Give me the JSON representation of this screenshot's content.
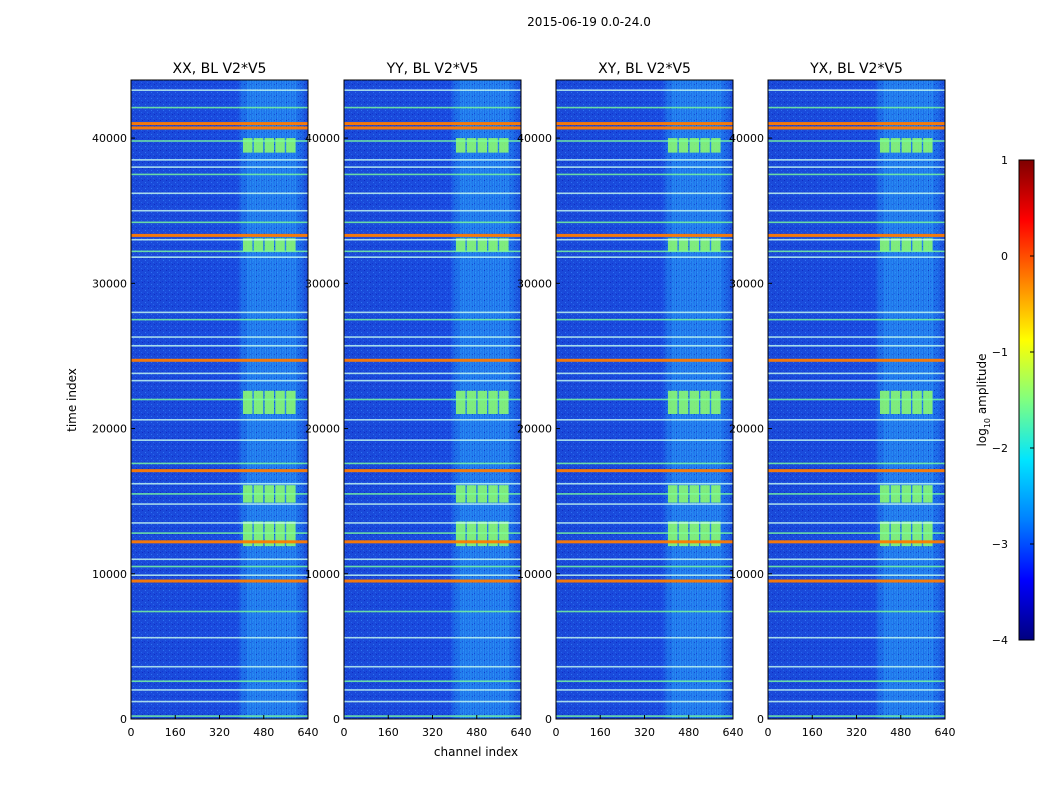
{
  "figure": {
    "suptitle": "2015-06-19 0.0-24.0",
    "xlabel": "channel index",
    "ylabel": "time index"
  },
  "colorbar": {
    "label_main": "log",
    "label_sub": "10",
    "label_tail": " amplitude",
    "range": [
      -4,
      1
    ],
    "ticks": [
      "1",
      "0",
      "−1",
      "−2",
      "−3",
      "−4"
    ],
    "colors": [
      "#7f0000",
      "#ff0000",
      "#ff8000",
      "#ffff00",
      "#80ff80",
      "#00e5ff",
      "#0080ff",
      "#0000ff",
      "#00007f"
    ]
  },
  "chart_data": {
    "type": "heatmap",
    "x_range": [
      0,
      640
    ],
    "y_range": [
      0,
      44000
    ],
    "x_ticks": [
      0,
      160,
      320,
      480,
      640
    ],
    "y_ticks": [
      0,
      10000,
      20000,
      30000,
      40000
    ],
    "panels": [
      {
        "title": "XX, BL V2*V5"
      },
      {
        "title": "YY, BL V2*V5"
      },
      {
        "title": "XY, BL V2*V5"
      },
      {
        "title": "YX, BL V2*V5"
      }
    ],
    "rfi_lines_time": [
      200,
      1200,
      2000,
      2600,
      3600,
      5600,
      7400,
      9500,
      9900,
      10500,
      11000,
      12200,
      12800,
      13500,
      14800,
      15500,
      16200,
      17100,
      17600,
      19200,
      20600,
      22000,
      23300,
      23800,
      24700,
      25700,
      26300,
      27500,
      28000,
      31800,
      32200,
      33000,
      33300,
      34200,
      35000,
      36200,
      37500,
      38000,
      38500,
      39800,
      40700,
      41000,
      42100,
      43300
    ],
    "strong_lines_time": [
      9500,
      12200,
      17100,
      17400,
      24700,
      33300,
      40700,
      41000
    ],
    "block_channel_range": [
      405,
      600
    ],
    "block_time_ranges": [
      [
        11900,
        13600
      ],
      [
        14900,
        16100
      ],
      [
        21000,
        22600
      ],
      [
        32200,
        33100
      ],
      [
        39000,
        40000
      ]
    ]
  }
}
